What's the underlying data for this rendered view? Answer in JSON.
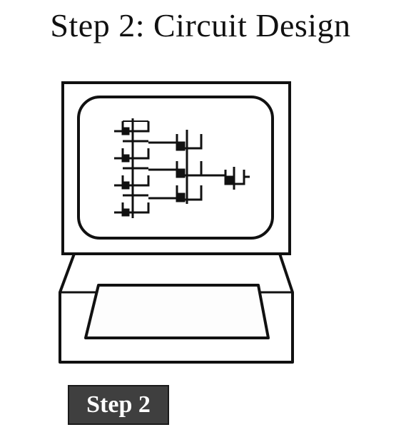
{
  "title": "Step 2: Circuit Design",
  "badge": {
    "label": "Step 2"
  },
  "colors": {
    "ink": "#111111",
    "badge_background": "#3f3f3f",
    "badge_text": "#ffffff",
    "paper": "#ffffff"
  },
  "illustration": {
    "icon": "computer-terminal-icon",
    "screen_content": "logic-circuit-schematic-icon"
  }
}
